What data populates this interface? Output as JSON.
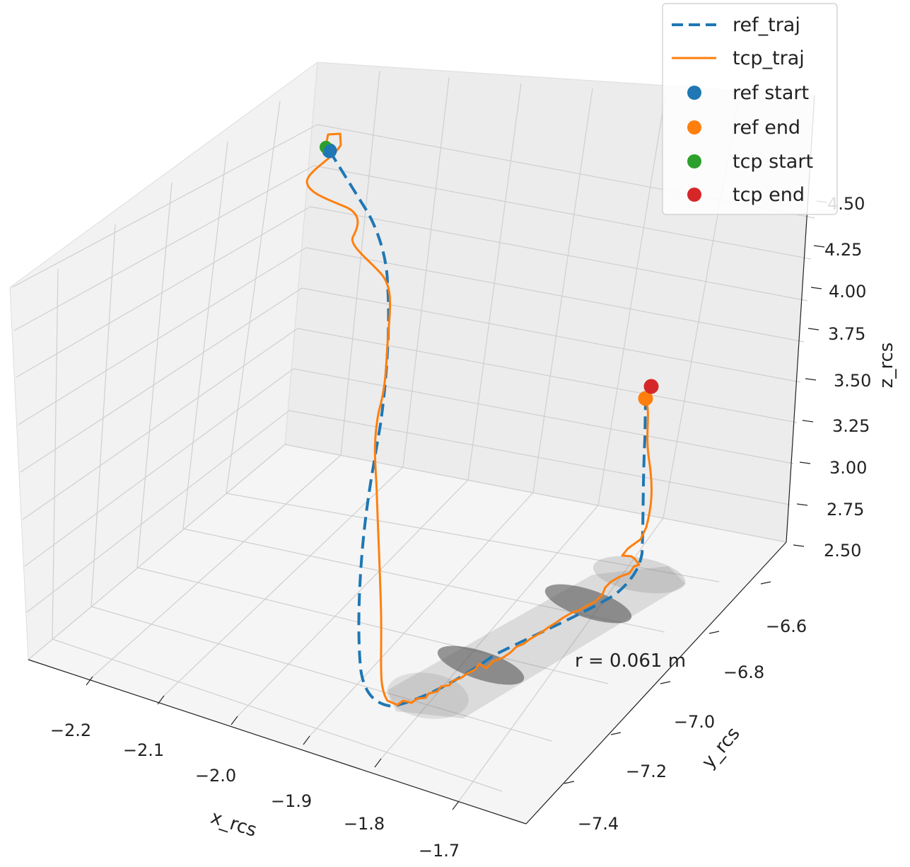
{
  "chart_data": {
    "type": "line",
    "projection": "3d",
    "grid": true,
    "legend_position": "top-right",
    "xlabel": "x_rcs",
    "ylabel": "y_rcs",
    "zlabel": "z_rcs",
    "x_ticks": [
      "−2.2",
      "−2.1",
      "−2.0",
      "−1.9",
      "−1.8",
      "−1.7"
    ],
    "y_ticks": [
      "−7.4",
      "−7.2",
      "−7.0",
      "−6.8",
      "−6.6"
    ],
    "z_ticks": [
      "2.50",
      "2.75",
      "3.00",
      "3.25",
      "3.50",
      "3.75",
      "4.00",
      "4.25",
      "4.50"
    ],
    "annotation": "r = 0.061 m",
    "colors": {
      "ref_traj": "#1f77b4",
      "tcp_traj": "#ff7f0e",
      "ref_start": "#1f77b4",
      "ref_end": "#ff7f0e",
      "tcp_start": "#2ca02c",
      "tcp_end": "#d62728",
      "tube": "#808080"
    },
    "legend": [
      {
        "label": "ref_traj",
        "kind": "dashed-line",
        "color": "#1f77b4"
      },
      {
        "label": "tcp_traj",
        "kind": "line",
        "color": "#ff7f0e"
      },
      {
        "label": "ref start",
        "kind": "marker",
        "color": "#1f77b4"
      },
      {
        "label": "ref end",
        "kind": "marker",
        "color": "#ff7f0e"
      },
      {
        "label": "tcp start",
        "kind": "marker",
        "color": "#2ca02c"
      },
      {
        "label": "tcp end",
        "kind": "marker",
        "color": "#d62728"
      }
    ]
  }
}
